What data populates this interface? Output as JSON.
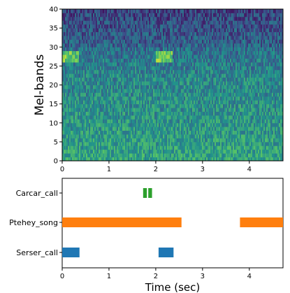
{
  "chart_data": [
    {
      "type": "heatmap",
      "title": "",
      "xlabel": "",
      "ylabel": "Mel-bands",
      "xlim": [
        0,
        4.72
      ],
      "ylim": [
        0,
        40
      ],
      "x_ticks": [
        "0",
        "1",
        "2",
        "3",
        "4"
      ],
      "y_ticks": [
        "0",
        "5",
        "10",
        "15",
        "20",
        "25",
        "30",
        "35",
        "40"
      ],
      "colormap": [
        "#440154",
        "#3b528b",
        "#21918c",
        "#5ec962",
        "#fde725"
      ],
      "bright_regions": [
        {
          "x": [
            0.0,
            0.35
          ],
          "y": [
            26,
            29
          ]
        },
        {
          "x": [
            2.0,
            2.35
          ],
          "y": [
            26,
            29
          ]
        }
      ]
    },
    {
      "type": "bar",
      "title": "",
      "xlabel": "Time (sec)",
      "ylabel": "",
      "xlim": [
        0,
        4.72
      ],
      "x_ticks": [
        "0",
        "1",
        "2",
        "3",
        "4"
      ],
      "categories": [
        "Serser_call",
        "Ptehey_song",
        "Carcar_call"
      ],
      "series": [
        {
          "category": "Serser_call",
          "color": "#1f77b4",
          "intervals": [
            [
              0.0,
              0.37
            ],
            [
              2.06,
              2.38
            ]
          ]
        },
        {
          "category": "Ptehey_song",
          "color": "#ff7f0e",
          "intervals": [
            [
              0.0,
              2.55
            ],
            [
              3.8,
              4.72
            ]
          ]
        },
        {
          "category": "Carcar_call",
          "color": "#2ca02c",
          "intervals": [
            [
              1.73,
              1.81
            ],
            [
              1.84,
              1.92
            ]
          ]
        }
      ]
    }
  ]
}
